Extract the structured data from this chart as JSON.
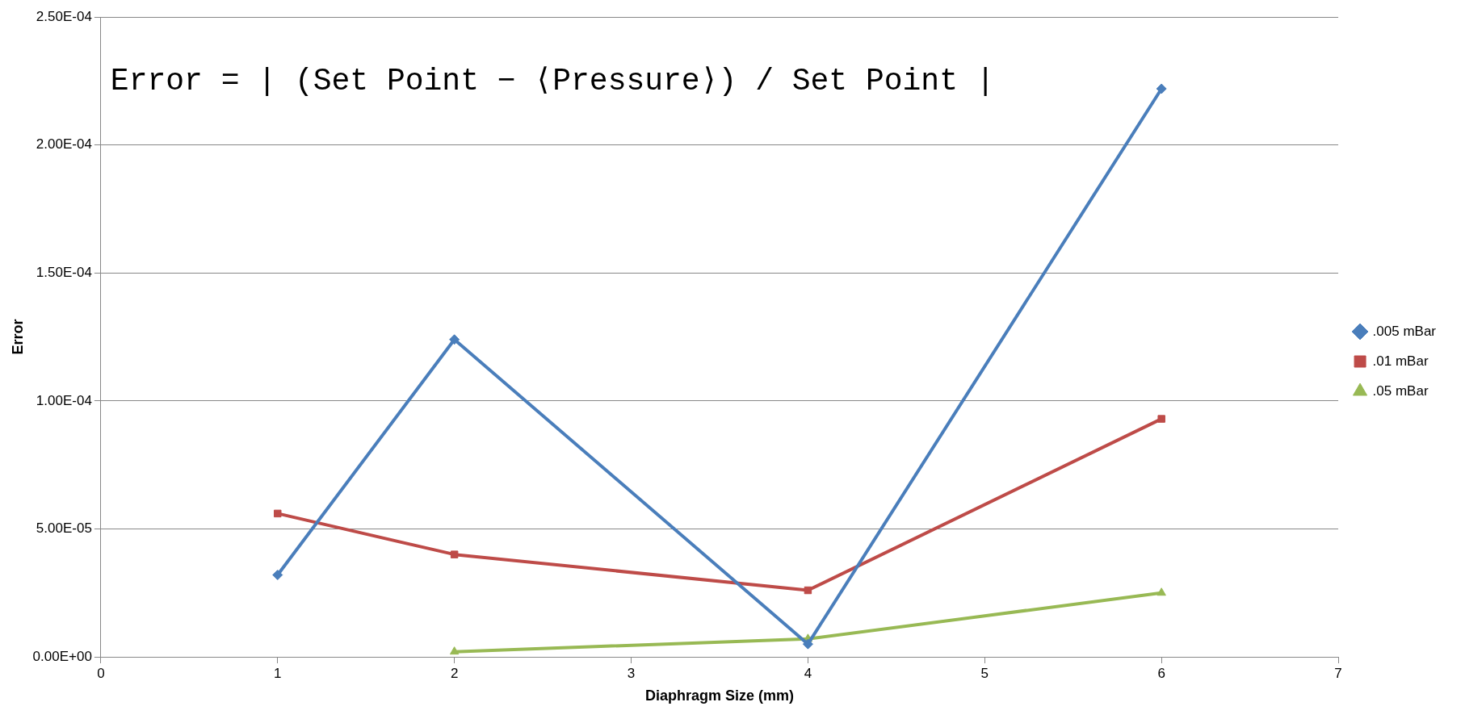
{
  "chart_data": {
    "type": "line",
    "xlabel": "Diaphragm Size (mm)",
    "ylabel": "Error",
    "annotations": [
      "Error = | (Set Point − ⟨Pressure⟩) / Set Point |"
    ],
    "xlim": [
      0,
      7
    ],
    "xticks": [
      0,
      1,
      2,
      3,
      4,
      5,
      6,
      7
    ],
    "ylim": [
      0,
      0.00025
    ],
    "yticks": [
      {
        "value": 0,
        "label": "0.00E+00"
      },
      {
        "value": 5e-05,
        "label": "5.00E-05"
      },
      {
        "value": 0.0001,
        "label": "1.00E-04"
      },
      {
        "value": 0.00015,
        "label": "1.50E-04"
      },
      {
        "value": 0.0002,
        "label": "2.00E-04"
      },
      {
        "value": 0.00025,
        "label": "2.50E-04"
      }
    ],
    "grid": "y",
    "legend": "right",
    "series": [
      {
        "name": ".005 mBar",
        "color": "#4a7ebb",
        "marker": "diamond",
        "x": [
          1,
          2,
          4,
          6
        ],
        "values": [
          3.2e-05,
          0.000124,
          5e-06,
          0.000222
        ]
      },
      {
        "name": ".01 mBar",
        "color": "#be4b48",
        "marker": "square",
        "x": [
          1,
          2,
          4,
          6
        ],
        "values": [
          5.6e-05,
          4e-05,
          2.6e-05,
          9.3e-05
        ]
      },
      {
        "name": ".05 mBar",
        "color": "#98b954",
        "marker": "triangle",
        "x": [
          2,
          4,
          6
        ],
        "values": [
          2e-06,
          7e-06,
          2.5e-05
        ]
      }
    ]
  }
}
